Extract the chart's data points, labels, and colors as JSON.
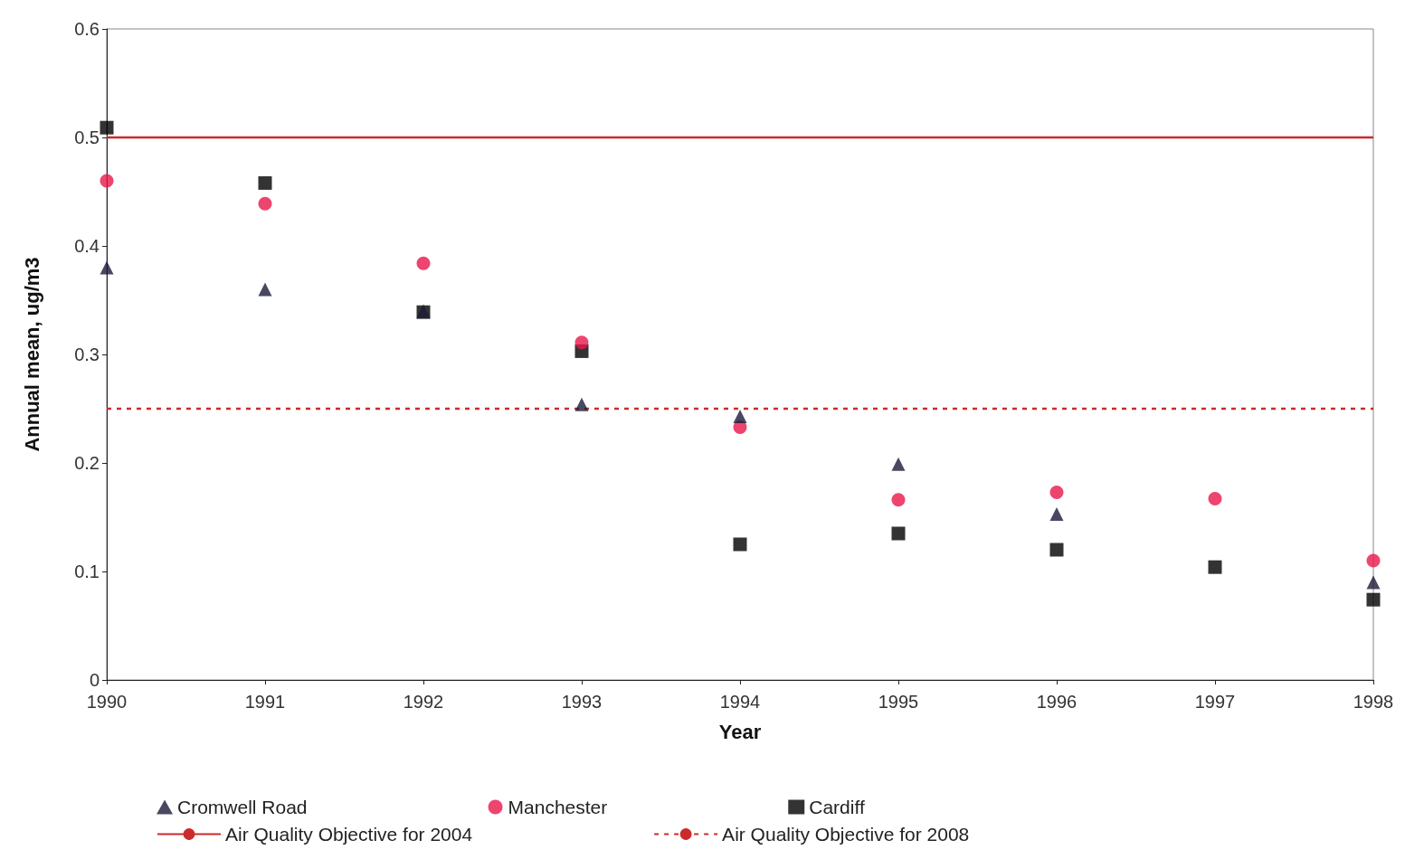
{
  "chart_data": {
    "type": "scatter",
    "xlabel": "Year",
    "ylabel": "Annual mean, ug/m3",
    "x": [
      1990,
      1991,
      1992,
      1993,
      1994,
      1995,
      1996,
      1997,
      1998
    ],
    "series": [
      {
        "name": "Cromwell Road",
        "color": "#1c1a3a",
        "marker": "triangle",
        "values": [
          0.38,
          0.36,
          0.34,
          0.254,
          0.243,
          0.199,
          0.153,
          null,
          0.09
        ]
      },
      {
        "name": "Manchester",
        "color": "#e8174a",
        "marker": "circle",
        "values": [
          0.46,
          0.439,
          0.384,
          0.311,
          0.233,
          0.166,
          0.173,
          0.167,
          0.11
        ]
      },
      {
        "name": "Cardiff",
        "color": "#000000",
        "marker": "square",
        "values": [
          0.509,
          0.458,
          0.339,
          0.303,
          0.125,
          0.135,
          0.12,
          0.104,
          0.074
        ]
      }
    ],
    "ref_lines": [
      {
        "axis": "y",
        "value": 0.5,
        "label": "Air Quality Objective for 2004",
        "color": "#cc2b2b",
        "line_style": "solid"
      },
      {
        "axis": "y",
        "value": 0.25,
        "label": "Air Quality Objective for 2008",
        "color": "#cc2b2b",
        "line_style": "dashed"
      }
    ],
    "xlim": [
      1990,
      1998
    ],
    "xticks": [
      1990,
      1991,
      1992,
      1993,
      1994,
      1995,
      1996,
      1997,
      1998
    ],
    "ylim": [
      0,
      0.6
    ],
    "yticks": [
      0,
      0.1,
      0.2,
      0.3,
      0.4,
      0.5,
      0.6
    ],
    "grid": false,
    "legend": "bottom"
  }
}
